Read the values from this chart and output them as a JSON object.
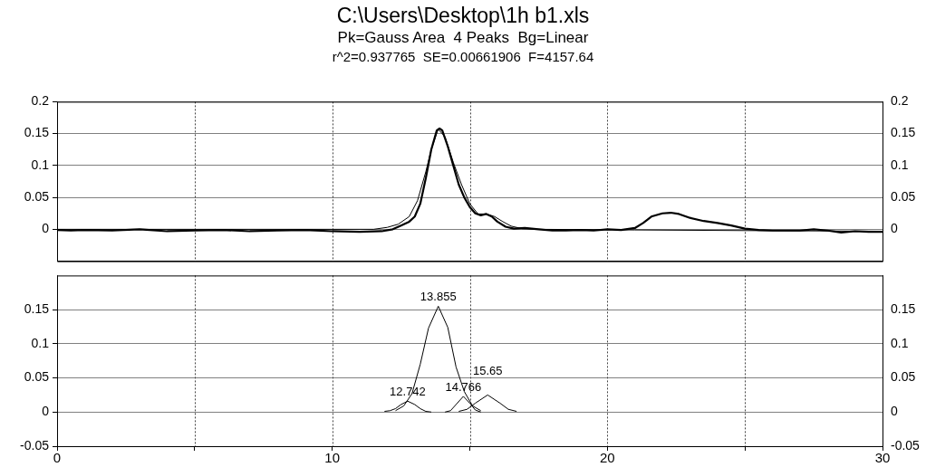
{
  "chart_data": [
    {
      "type": "line",
      "title": "C:\\Users\\Desktop\\1h b1.xls",
      "subtitle": "Pk=Gauss Area  4 Peaks  Bg=Linear",
      "annotations": [
        "r^2=0.937765  SE=0.00661906  F=4157.64"
      ],
      "xlim": [
        0,
        30
      ],
      "xticks": [
        0,
        {
          "value": 5,
          "label": null
        },
        10,
        {
          "value": 15,
          "label": null
        },
        20,
        {
          "value": 25,
          "label": null
        },
        30
      ],
      "ylim": [
        -0.05,
        0.2
      ],
      "yticks": [
        0,
        0.05,
        0.1,
        0.15,
        0.2
      ],
      "y2lim": [
        -0.05,
        0.2
      ],
      "y2ticks": [
        0,
        0.05,
        0.1,
        0.15,
        0.2
      ],
      "tick_labels": "y",
      "grid": true,
      "marker": "none",
      "line_style": "solid",
      "series": [
        {
          "color": "#000000",
          "x": [
            0,
            0.5,
            1,
            2,
            3,
            4,
            5,
            6,
            7,
            8,
            9,
            10,
            11,
            11.8,
            12.2,
            12.5,
            12.8,
            13.0,
            13.2,
            13.4,
            13.6,
            13.8,
            13.9,
            14.0,
            14.2,
            14.4,
            14.6,
            14.8,
            15.0,
            15.2,
            15.4,
            15.6,
            15.8,
            16.0,
            16.3,
            16.6,
            17,
            17.5,
            18,
            18.5,
            19,
            19.5,
            20,
            20.5,
            21,
            21.3,
            21.6,
            22,
            22.3,
            22.6,
            23,
            23.5,
            24,
            24.5,
            25,
            25.5,
            26,
            26.5,
            27,
            27.5,
            28,
            28.5,
            29,
            29.5,
            30
          ],
          "values": [
            -0.001,
            -0.002,
            -0.001,
            -0.002,
            0,
            -0.003,
            -0.002,
            -0.001,
            -0.003,
            -0.002,
            -0.001,
            -0.003,
            -0.004,
            -0.003,
            0,
            0.006,
            0.012,
            0.02,
            0.04,
            0.08,
            0.125,
            0.155,
            0.158,
            0.155,
            0.13,
            0.1,
            0.07,
            0.05,
            0.035,
            0.025,
            0.022,
            0.024,
            0.02,
            0.012,
            0.004,
            0.001,
            0.002,
            0,
            -0.002,
            -0.002,
            -0.001,
            -0.002,
            0,
            -0.001,
            0.002,
            0.01,
            0.02,
            0.025,
            0.026,
            0.024,
            0.018,
            0.013,
            0.01,
            0.006,
            0.001,
            -0.001,
            -0.002,
            -0.002,
            -0.002,
            0,
            -0.002,
            -0.005,
            -0.003,
            -0.004,
            -0.004
          ]
        },
        {
          "color": "#000000",
          "x": [
            0,
            11.5,
            12,
            12.4,
            12.8,
            13.1,
            13.4,
            13.6,
            13.85,
            14.1,
            14.4,
            14.7,
            15.0,
            15.3,
            15.6,
            15.9,
            16.2,
            16.5,
            16.9,
            17.5,
            21,
            25,
            30
          ],
          "values": [
            0,
            0,
            0.003,
            0.008,
            0.02,
            0.045,
            0.09,
            0.125,
            0.157,
            0.145,
            0.105,
            0.07,
            0.04,
            0.024,
            0.024,
            0.02,
            0.012,
            0.005,
            0.001,
            0,
            -0.001,
            -0.002,
            -0.003
          ]
        }
      ]
    },
    {
      "type": "line",
      "annotations": [
        {
          "text": "12.742",
          "x": 12.742,
          "y": 0.016
        },
        {
          "text": "13.855",
          "x": 13.855,
          "y": 0.155
        },
        {
          "text": "14.766",
          "x": 14.766,
          "y": 0.023
        },
        {
          "text": "15.65",
          "x": 15.65,
          "y": 0.025
        }
      ],
      "xlim": [
        0,
        30
      ],
      "xticks": [
        0,
        {
          "value": 5,
          "label": null
        },
        10,
        {
          "value": 15,
          "label": null
        },
        20,
        {
          "value": 25,
          "label": null
        },
        30
      ],
      "ylim": [
        -0.05,
        0.2
      ],
      "yticks": [
        -0.05,
        0,
        0.05,
        0.1,
        0.15
      ],
      "y2lim": [
        -0.05,
        0.2
      ],
      "y2ticks": [
        -0.05,
        0,
        0.05,
        0.1,
        0.15
      ],
      "grid": true,
      "marker": "none",
      "line_style": "solid",
      "series": [
        {
          "color": "#000000",
          "x": [
            11.9,
            12.1,
            12.3,
            12.5,
            12.742,
            13.0,
            13.2,
            13.4,
            13.6
          ],
          "values": [
            0.001,
            0.002,
            0.005,
            0.011,
            0.016,
            0.011,
            0.005,
            0.001,
            0
          ]
        },
        {
          "color": "#000000",
          "x": [
            12.3,
            12.6,
            12.9,
            13.2,
            13.5,
            13.855,
            14.2,
            14.5,
            14.8,
            15.1,
            15.4
          ],
          "values": [
            0.002,
            0.009,
            0.027,
            0.07,
            0.123,
            0.155,
            0.124,
            0.066,
            0.03,
            0.009,
            0.002
          ]
        },
        {
          "color": "#000000",
          "x": [
            14.1,
            14.3,
            14.5,
            14.766,
            15.0,
            15.2,
            15.4
          ],
          "values": [
            0,
            0.002,
            0.011,
            0.023,
            0.013,
            0.003,
            0
          ]
        },
        {
          "color": "#000000",
          "x": [
            14.6,
            14.9,
            15.2,
            15.65,
            16.1,
            16.4,
            16.7
          ],
          "values": [
            0.001,
            0.004,
            0.013,
            0.025,
            0.013,
            0.004,
            0.001
          ]
        }
      ]
    }
  ]
}
